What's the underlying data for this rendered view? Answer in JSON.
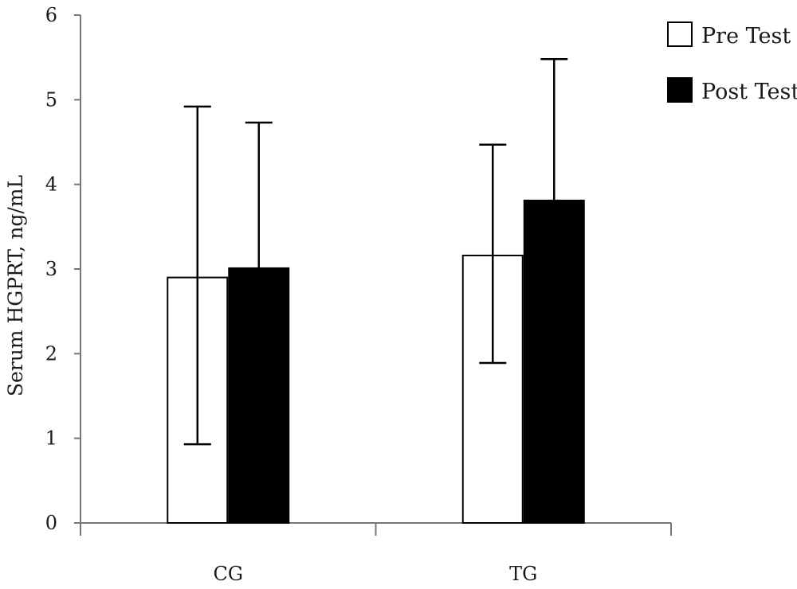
{
  "chart_data": {
    "type": "bar",
    "categories": [
      "CG",
      "TG"
    ],
    "series": [
      {
        "name": "Pre Test",
        "values": [
          2.9,
          3.16
        ],
        "error_upper": [
          4.92,
          4.47
        ],
        "error_lower": [
          0.93,
          1.89
        ],
        "fill": "#ffffff"
      },
      {
        "name": "Post Test",
        "values": [
          3.01,
          3.81
        ],
        "error_upper": [
          4.73,
          5.48
        ],
        "error_lower": [
          null,
          null
        ],
        "fill": "#000000"
      }
    ],
    "xlabel": "",
    "ylabel": "Serum HGPRT, ng/mL",
    "ylim": [
      0,
      6
    ],
    "yticks": [
      "0",
      "1",
      "2",
      "3",
      "4",
      "5",
      "6"
    ],
    "grid": false,
    "legend_position": "top-right",
    "error_bars": "one-sided (upward for both series, downward for Pre Test only)"
  }
}
